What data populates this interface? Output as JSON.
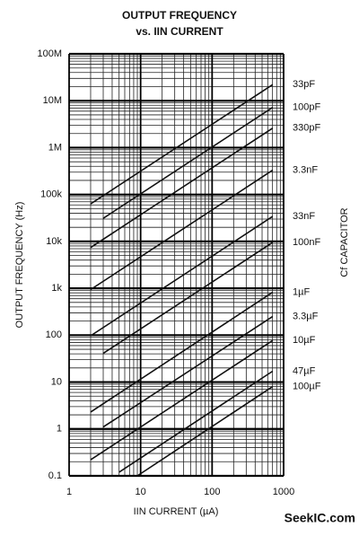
{
  "chart_data": {
    "type": "line",
    "title": "OUTPUT FREQUENCY",
    "subtitle": "vs. IIN CURRENT",
    "x_label": "IIN CURRENT (µA)",
    "y_label": "OUTPUT FREQUENCY (Hz)",
    "legend_title": "Cf CAPACITOR",
    "watermark": "SeekIC.com",
    "log_x": true,
    "log_y": true,
    "grid": true,
    "minor_grid": true,
    "xlim": [
      1,
      1000
    ],
    "ylim": [
      0.1,
      100000000
    ],
    "xticks": [
      1,
      10,
      100,
      1000
    ],
    "yticks": [
      0.1,
      1,
      10,
      100,
      {
        "value": 1000,
        "label": "1k"
      },
      {
        "value": 10000,
        "label": "10k"
      },
      {
        "value": 100000,
        "label": "100k"
      },
      {
        "value": 1000000,
        "label": "1M"
      },
      {
        "value": 10000000,
        "label": "10M"
      },
      {
        "value": 100000000,
        "label": "100M"
      }
    ],
    "series": [
      {
        "name": "33pF",
        "color": "#111111",
        "x": [
          2,
          700
        ],
        "values": [
          63000,
          22000000
        ]
      },
      {
        "name": "100pF",
        "color": "#111111",
        "x": [
          3,
          700
        ],
        "values": [
          31000,
          7200000
        ]
      },
      {
        "name": "330pF",
        "color": "#111111",
        "x": [
          2,
          700
        ],
        "values": [
          7400,
          2600000
        ]
      },
      {
        "name": "3.3nF",
        "color": "#111111",
        "x": [
          2,
          700
        ],
        "values": [
          940,
          330000
        ]
      },
      {
        "name": "33nF",
        "color": "#111111",
        "x": [
          2,
          700
        ],
        "values": [
          97,
          34000
        ]
      },
      {
        "name": "100nF",
        "color": "#111111",
        "x": [
          3,
          700
        ],
        "values": [
          41,
          9500
        ]
      },
      {
        "name": "1µF",
        "color": "#111111",
        "x": [
          2,
          700
        ],
        "values": [
          2.3,
          820
        ]
      },
      {
        "name": "3.3µF",
        "color": "#111111",
        "x": [
          3,
          700
        ],
        "values": [
          1.1,
          250
        ]
      },
      {
        "name": "10µF",
        "color": "#111111",
        "x": [
          2,
          700
        ],
        "values": [
          0.22,
          77
        ]
      },
      {
        "name": "47µF",
        "color": "#111111",
        "x": [
          5,
          700
        ],
        "values": [
          0.12,
          17
        ]
      },
      {
        "name": "100µF",
        "color": "#111111",
        "x": [
          9,
          700
        ],
        "values": [
          0.1,
          8
        ]
      }
    ]
  }
}
